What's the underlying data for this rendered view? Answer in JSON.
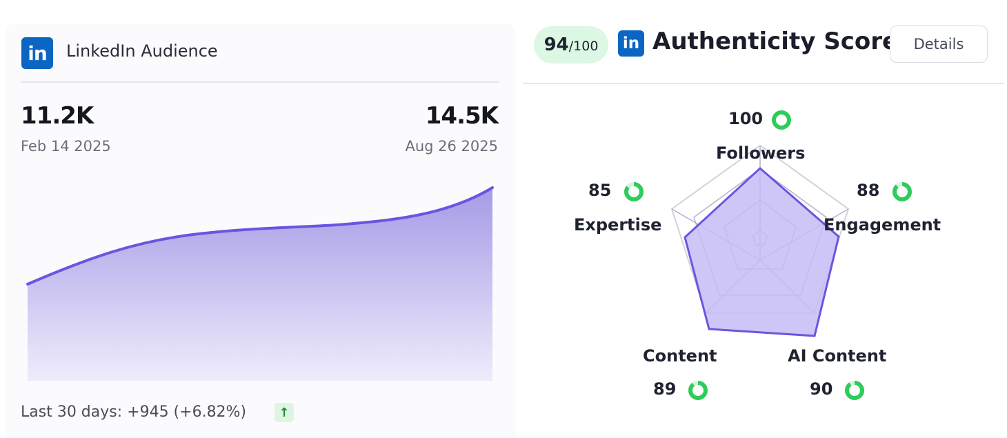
{
  "audience": {
    "title": "LinkedIn Audience",
    "logo_text": "in",
    "start_value": "11.2K",
    "start_date": "Feb 14 2025",
    "end_value": "14.5K",
    "end_date": "Aug 26 2025",
    "footer": "Last 30 days: +945 (+6.82%)",
    "trend_icon": "arrow-up-icon",
    "colors": {
      "line": "#6a55e0",
      "fill_top": "#a59be6",
      "fill_bottom": "#eeecfb",
      "up_badge": "#dff5e4"
    }
  },
  "authenticity": {
    "score": "94",
    "score_max": "/100",
    "logo_text": "in",
    "title": "Authenticity Score",
    "details_label": "Details",
    "colors": {
      "pill": "#dcf7e3",
      "ring": "#2ecc5a",
      "radar_fill": "#c5bcf5",
      "radar_stroke": "#6a55e0"
    },
    "axes": [
      {
        "label": "Followers",
        "score": "100"
      },
      {
        "label": "Engagement",
        "score": "88"
      },
      {
        "label": "AI Content",
        "score": "90"
      },
      {
        "label": "Content",
        "score": "89"
      },
      {
        "label": "Expertise",
        "score": "85"
      }
    ]
  }
}
